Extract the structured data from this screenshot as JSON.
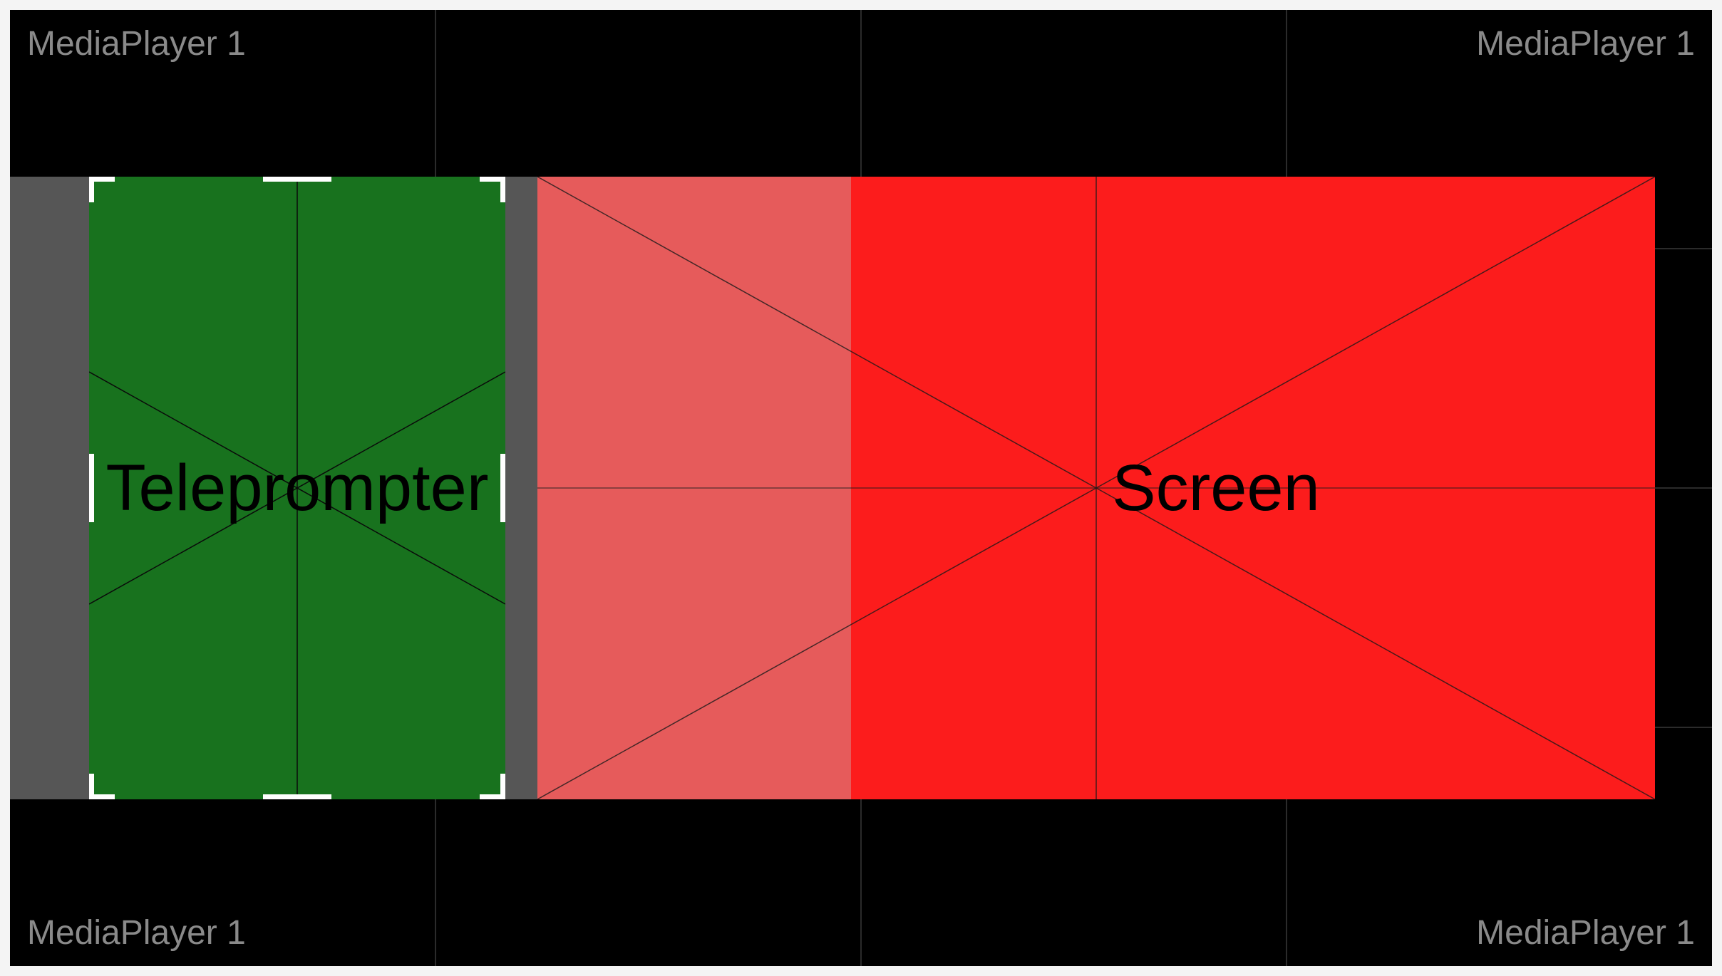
{
  "canvas": {
    "background": "#000000",
    "corner_labels": {
      "top_left": "MediaPlayer 1",
      "top_right": "MediaPlayer 1",
      "bottom_left": "MediaPlayer 1",
      "bottom_right": "MediaPlayer 1"
    }
  },
  "layers": {
    "teleprompter": {
      "label": "Teleprompter",
      "color": "#18721e",
      "selected": true
    },
    "screen": {
      "label": "Screen",
      "color": "#fc1c1c",
      "overlap_color": "#e65b5b"
    }
  },
  "colors": {
    "band": "#565656",
    "handles": "#ffffff",
    "corner_label": "#8a8a8a"
  }
}
